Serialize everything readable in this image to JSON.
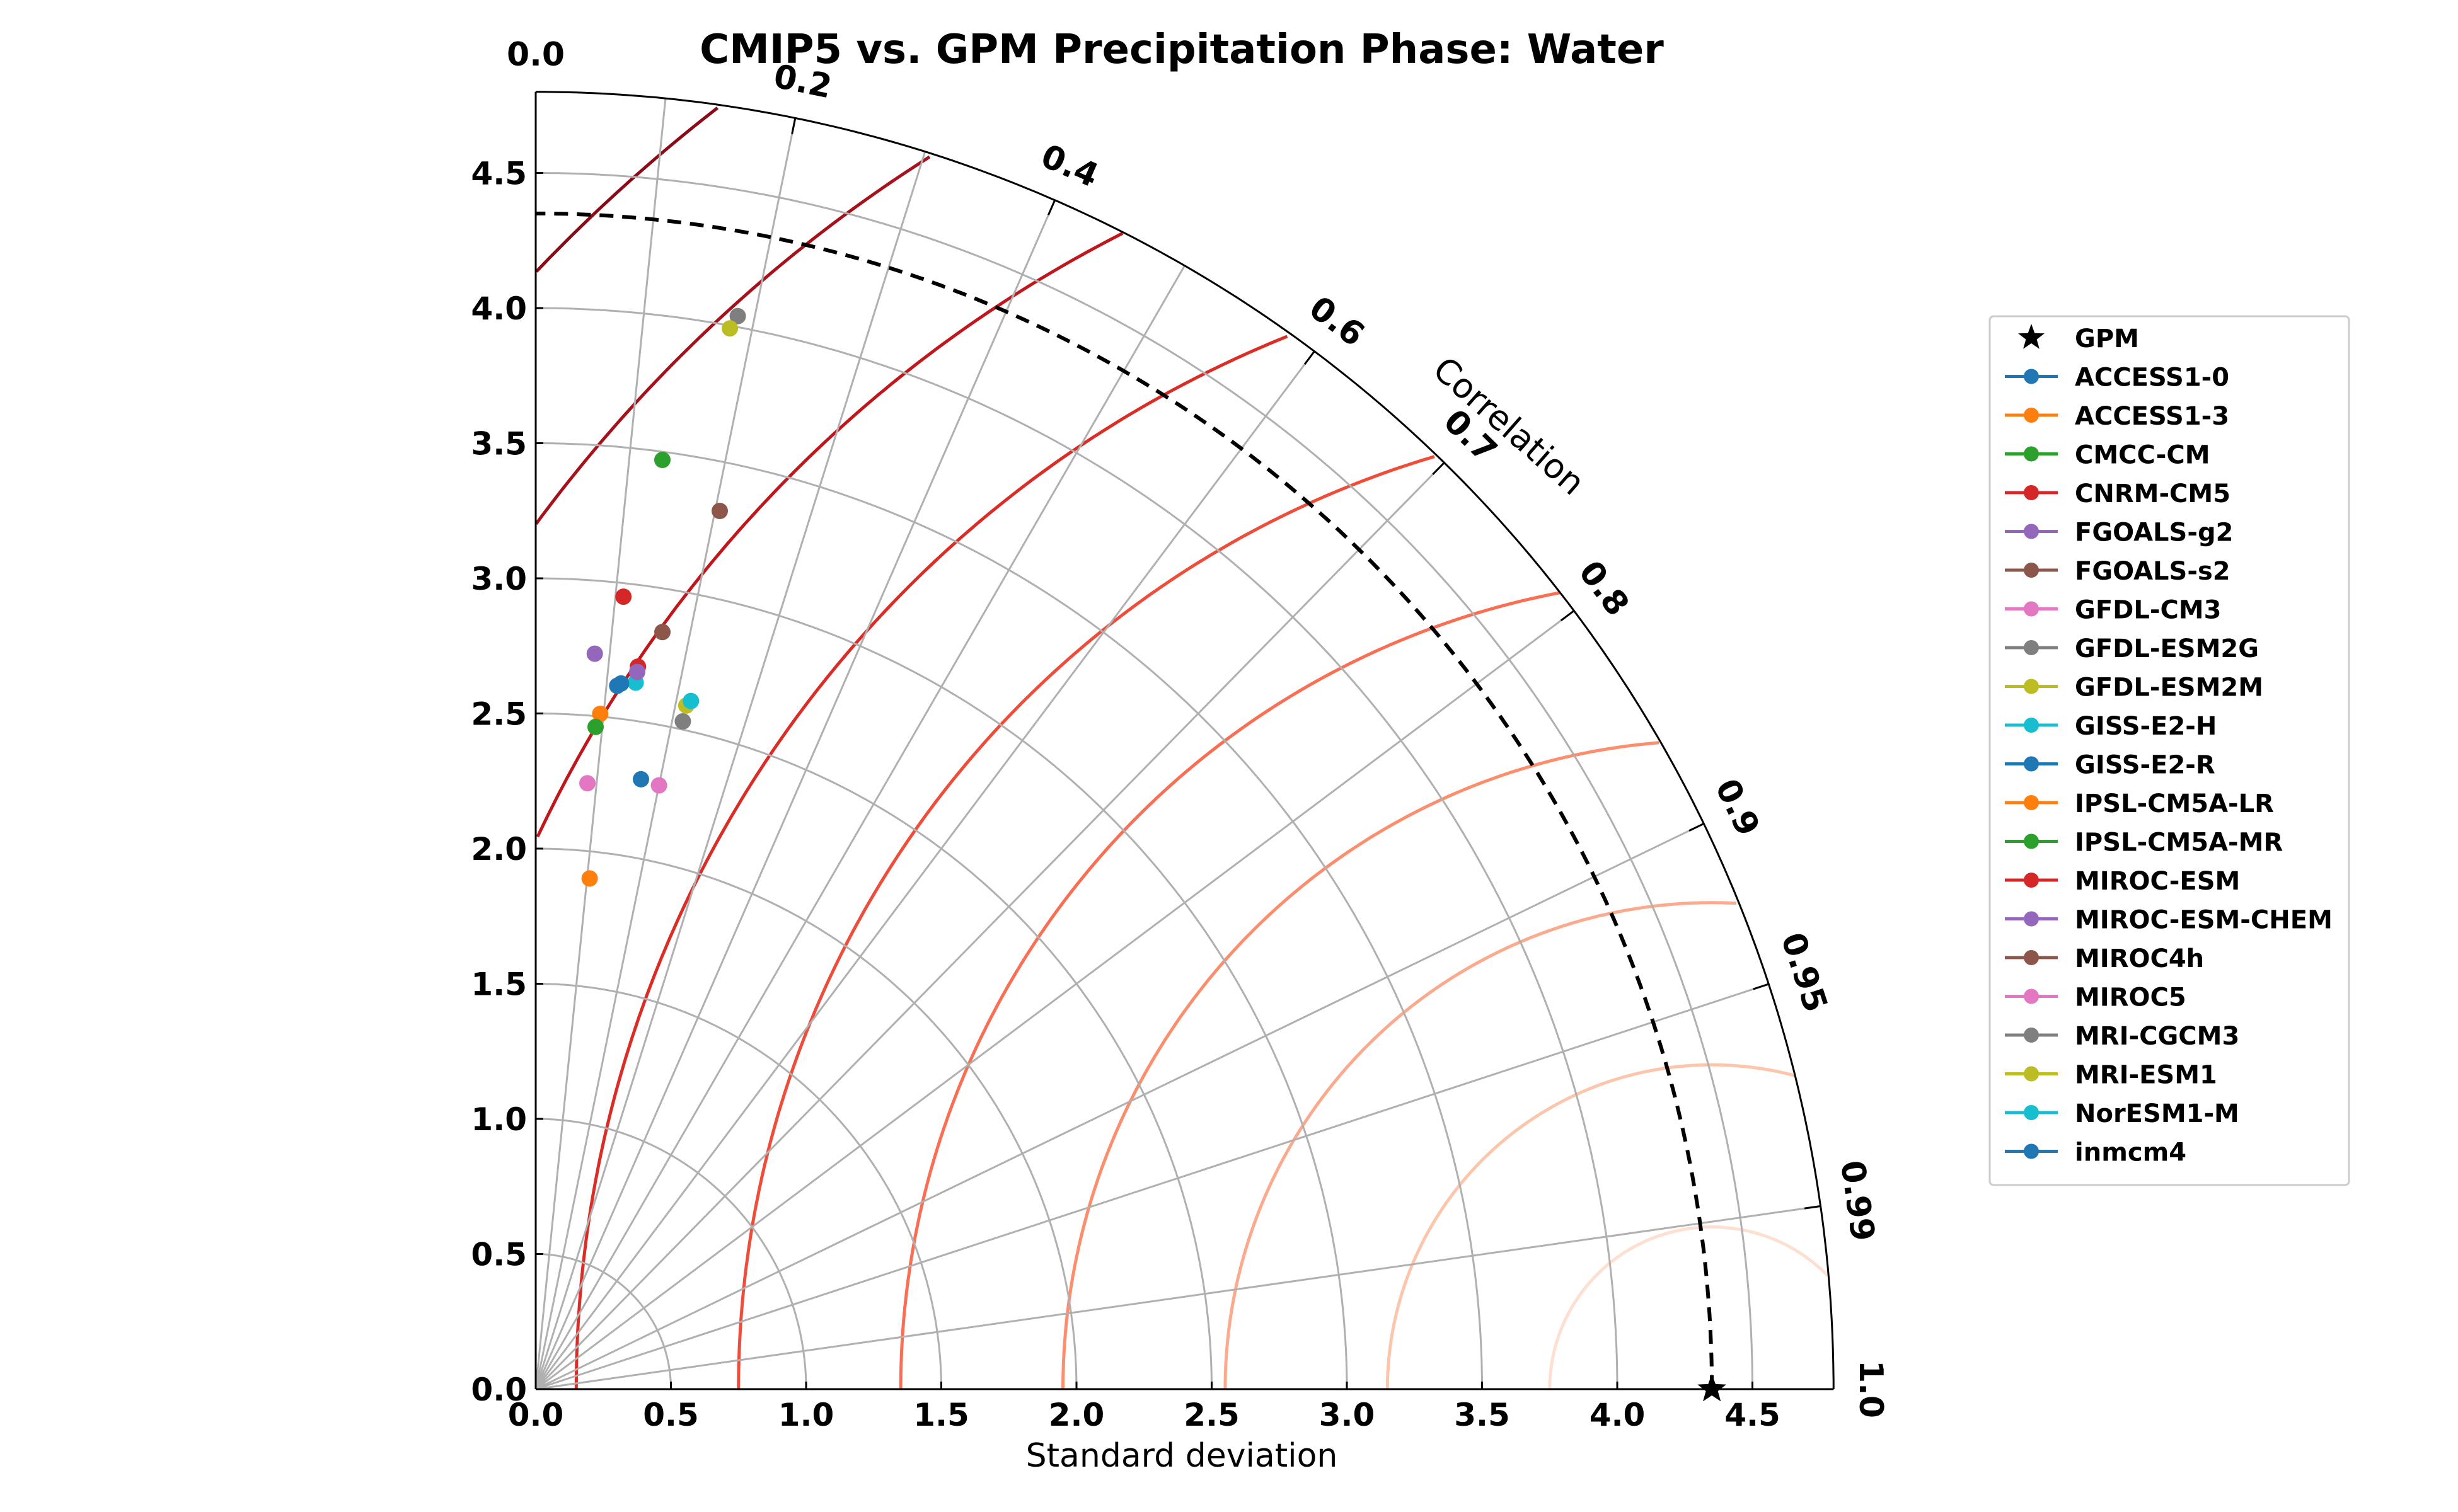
{
  "chart_data": {
    "type": "scatter",
    "subtype": "taylor-diagram",
    "title": "CMIP5 vs. GPM Precipitation Phase: Water",
    "xlabel": "Standard deviation",
    "ylabel": "",
    "angular_label": "Correlation",
    "std_max": 4.8,
    "reference_std": 4.35,
    "x_ticks": [
      "0.0",
      "0.5",
      "1.0",
      "1.5",
      "2.0",
      "2.5",
      "3.0",
      "3.5",
      "4.0",
      "4.5"
    ],
    "y_ticks": [
      "0.0",
      "0.5",
      "1.0",
      "1.5",
      "2.0",
      "2.5",
      "3.0",
      "3.5",
      "4.0",
      "4.5"
    ],
    "std_arcs": [
      0.5,
      1.0,
      1.5,
      2.0,
      2.5,
      3.0,
      3.5,
      4.0,
      4.5
    ],
    "correlation_ticks": [
      {
        "value": 0.0,
        "label": "0.0"
      },
      {
        "value": 0.2,
        "label": "0.2"
      },
      {
        "value": 0.4,
        "label": "0.4"
      },
      {
        "value": 0.6,
        "label": "0.6"
      },
      {
        "value": 0.7,
        "label": "0.7"
      },
      {
        "value": 0.8,
        "label": "0.8"
      },
      {
        "value": 0.9,
        "label": "0.9"
      },
      {
        "value": 0.95,
        "label": "0.95"
      },
      {
        "value": 0.99,
        "label": "0.99"
      },
      {
        "value": 1.0,
        "label": "1.0"
      }
    ],
    "rms_contours": [
      0.6,
      1.2,
      1.8,
      2.4,
      3.0,
      3.6,
      4.2,
      4.8,
      5.4,
      6.0
    ],
    "rms_colors": [
      "#fde0d2",
      "#fcc6ad",
      "#fcaa8d",
      "#fc8e6d",
      "#fa6e53",
      "#ef4c3a",
      "#dc2c26",
      "#c1171c",
      "#a7111b",
      "#8b0a17"
    ],
    "grid": true,
    "legend_position": "right",
    "reference": {
      "name": "GPM",
      "std": 4.35,
      "correlation": 1.0,
      "marker": "star",
      "color": "#000000"
    },
    "series": [
      {
        "name": "ACCESS1-0",
        "color": "#1f77b4",
        "std": 2.62,
        "correlation": 0.115
      },
      {
        "name": "ACCESS1-3",
        "color": "#ff7f0e",
        "std": 1.9,
        "correlation": 0.105
      },
      {
        "name": "CMCC-CM",
        "color": "#2ca02c",
        "std": 3.47,
        "correlation": 0.135
      },
      {
        "name": "CNRM-CM5",
        "color": "#d62728",
        "std": 2.95,
        "correlation": 0.11
      },
      {
        "name": "FGOALS-g2",
        "color": "#9467bd",
        "std": 2.73,
        "correlation": 0.08
      },
      {
        "name": "FGOALS-s2",
        "color": "#8c564b",
        "std": 3.32,
        "correlation": 0.205
      },
      {
        "name": "GFDL-CM3",
        "color": "#e377c2",
        "std": 2.28,
        "correlation": 0.2
      },
      {
        "name": "GFDL-ESM2G",
        "color": "#7f7f7f",
        "std": 4.04,
        "correlation": 0.185
      },
      {
        "name": "GFDL-ESM2M",
        "color": "#bcbd22",
        "std": 3.99,
        "correlation": 0.18
      },
      {
        "name": "GISS-E2-H",
        "color": "#17becf",
        "std": 2.64,
        "correlation": 0.14
      },
      {
        "name": "GISS-E2-R",
        "color": "#1f77b4",
        "std": 2.29,
        "correlation": 0.17
      },
      {
        "name": "IPSL-CM5A-LR",
        "color": "#ff7f0e",
        "std": 2.51,
        "correlation": 0.095
      },
      {
        "name": "IPSL-CM5A-MR",
        "color": "#2ca02c",
        "std": 2.46,
        "correlation": 0.09
      },
      {
        "name": "MIROC-ESM",
        "color": "#d62728",
        "std": 2.7,
        "correlation": 0.14
      },
      {
        "name": "MIROC-ESM-CHEM",
        "color": "#9467bd",
        "std": 2.68,
        "correlation": 0.14
      },
      {
        "name": "MIROC4h",
        "color": "#8c564b",
        "std": 2.84,
        "correlation": 0.165
      },
      {
        "name": "MIROC5",
        "color": "#e377c2",
        "std": 2.25,
        "correlation": 0.085
      },
      {
        "name": "MRI-CGCM3",
        "color": "#7f7f7f",
        "std": 2.53,
        "correlation": 0.215
      },
      {
        "name": "MRI-ESM1",
        "color": "#bcbd22",
        "std": 2.59,
        "correlation": 0.215
      },
      {
        "name": "NorESM1-M",
        "color": "#17becf",
        "std": 2.61,
        "correlation": 0.22
      },
      {
        "name": "inmcm4",
        "color": "#1f77b4",
        "std": 2.63,
        "correlation": 0.12
      }
    ]
  }
}
